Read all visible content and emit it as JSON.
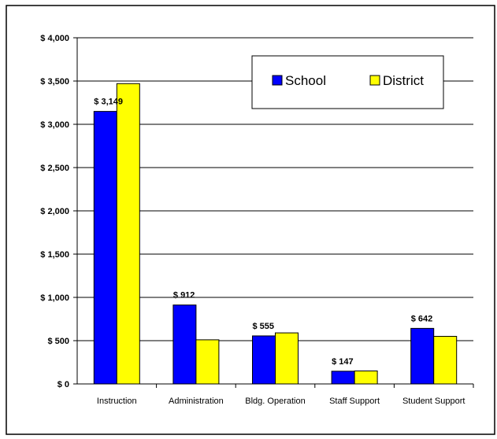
{
  "chart_data": {
    "type": "bar",
    "categories": [
      "Instruction",
      "Administration",
      "Bldg. Operation",
      "Staff Support",
      "Student Support"
    ],
    "series": [
      {
        "name": "School",
        "color": "#0000ff",
        "values": [
          3149,
          912,
          555,
          147,
          642
        ]
      },
      {
        "name": "District",
        "color": "#ffff00",
        "values": [
          3470,
          510,
          590,
          150,
          550
        ]
      }
    ],
    "data_labels": [
      "$ 3,149",
      "$ 912",
      "$ 555",
      "$ 147",
      "$ 642"
    ],
    "ylim": [
      0,
      4000
    ],
    "y_ticks": [
      0,
      500,
      1000,
      1500,
      2000,
      2500,
      3000,
      3500,
      4000
    ],
    "y_tick_labels": [
      "$ 0",
      "$ 500",
      "$ 1,000",
      "$ 1,500",
      "$ 2,000",
      "$ 2,500",
      "$ 3,000",
      "$ 3,500",
      "$ 4,000"
    ],
    "grid": true,
    "legend_position": "top-right",
    "title": "",
    "xlabel": "",
    "ylabel": ""
  }
}
